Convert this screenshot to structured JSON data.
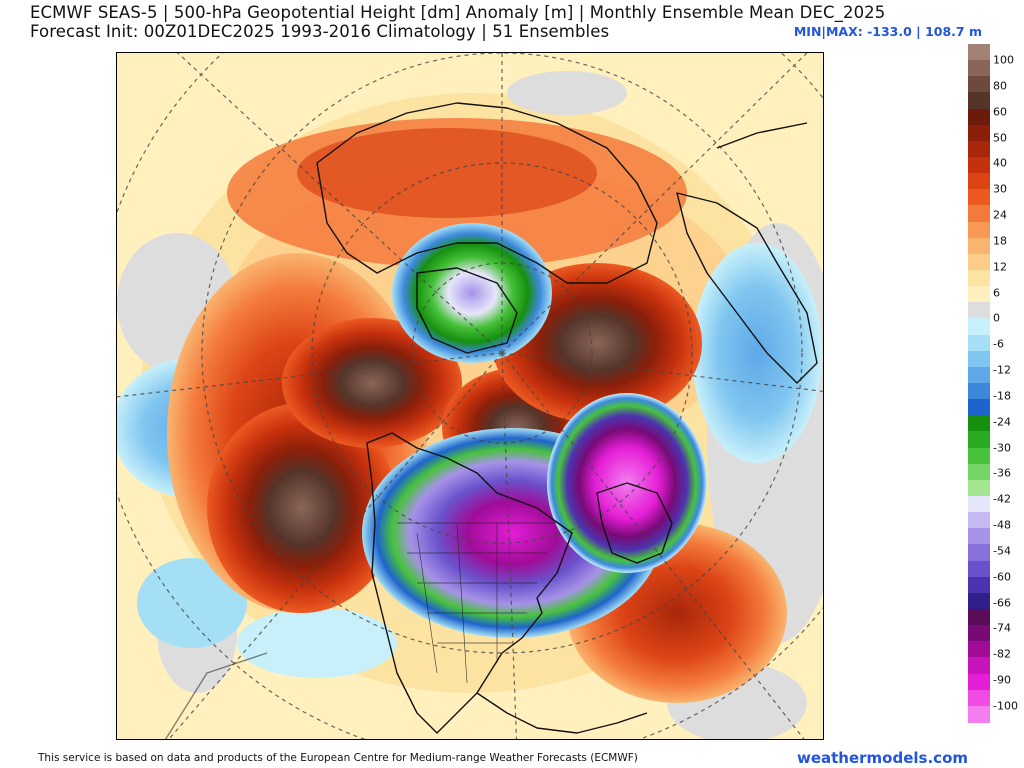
{
  "header": {
    "line1": "ECMWF SEAS-5 | 500-hPa Geopotential Height [dm] Anomaly [m] | Monthly Ensemble Mean DEC_2025",
    "line2": "Forecast Init: 00Z01DEC2025     1993-2016 Climatology | 51 Ensembles",
    "minmax": "MIN|MAX: -133.0 | 108.7 m"
  },
  "colorbar": {
    "labels": [
      "100",
      "80",
      "60",
      "50",
      "40",
      "30",
      "24",
      "18",
      "12",
      "6",
      "0",
      "-6",
      "-12",
      "-18",
      "-24",
      "-30",
      "-36",
      "-42",
      "-48",
      "-54",
      "-60",
      "-66",
      "-74",
      "-82",
      "-90",
      "-100"
    ],
    "segment_colors": [
      "#a38276",
      "#8a6659",
      "#6e4a3e",
      "#55342a",
      "#6b1a0c",
      "#8a1f0a",
      "#a8260a",
      "#c6310d",
      "#dc4416",
      "#ec5a22",
      "#f47a3c",
      "#f79856",
      "#f9b46f",
      "#fbcd89",
      "#fde3a2",
      "#fff0bd",
      "#dddddd",
      "#c8f0fa",
      "#a4dff5",
      "#80c6f0",
      "#5ea8e8",
      "#3c88dc",
      "#1e64cc",
      "#16900e",
      "#2aaa22",
      "#48c23c",
      "#74d666",
      "#a4e690",
      "#e6e6fa",
      "#c6b8f2",
      "#a692e8",
      "#8870dc",
      "#6a52cc",
      "#4c34b0",
      "#30208c",
      "#5a0c58",
      "#780a76",
      "#a00c98",
      "#c814bc",
      "#e41ed6",
      "#f04ce4",
      "#f47ef0"
    ]
  },
  "footer": {
    "attribution": "This service is based on data and products of the European Centre for Medium-range Weather Forecasts (ECMWF)",
    "brand": "weathermodels.com"
  }
}
